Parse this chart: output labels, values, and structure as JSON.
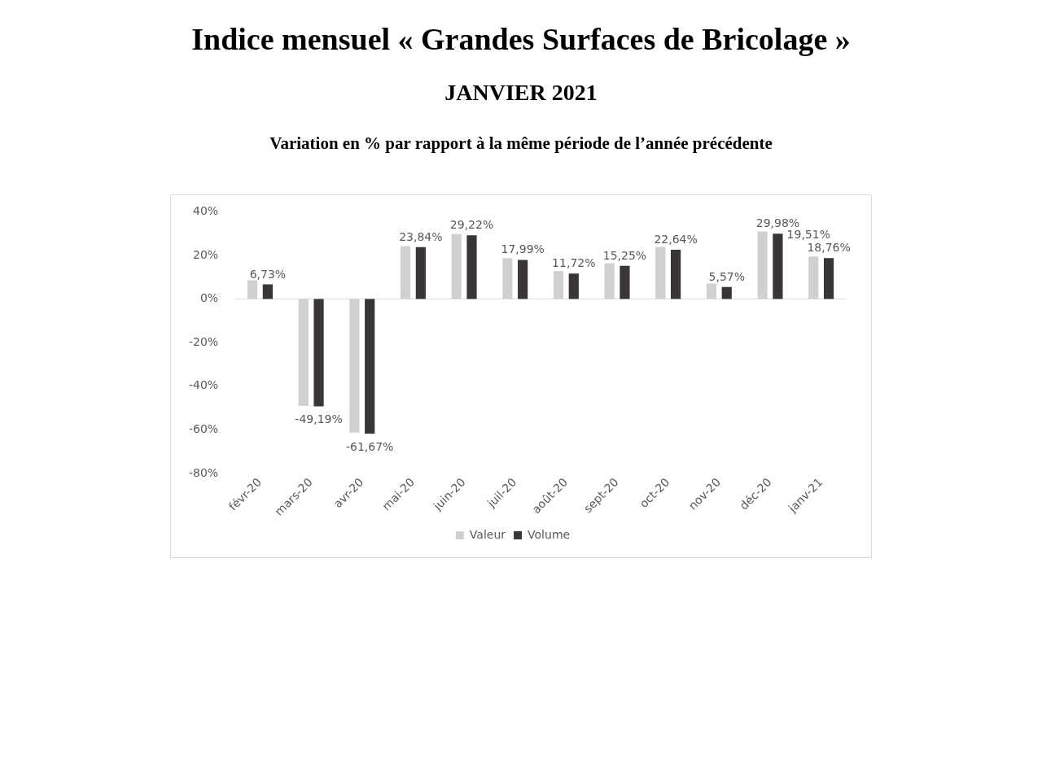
{
  "chart_data": {
    "type": "bar",
    "title": "Indice mensuel « Grandes Surfaces de Bricolage »",
    "subtitle": "JANVIER 2021",
    "annotations": [
      "Variation en % par rapport à la même période de l’année précédente"
    ],
    "categories": [
      "févr-20",
      "mars-20",
      "avr-20",
      "mai-20",
      "juin-20",
      "juil-20",
      "août-20",
      "sept-20",
      "oct-20",
      "nov-20",
      "déc-20",
      "janv-21"
    ],
    "series": [
      {
        "name": "Valeur",
        "color": "#d0d0d0",
        "values": [
          8.6,
          -49,
          -61.2,
          24.3,
          29.8,
          18.8,
          12.9,
          16.5,
          23.9,
          7.1,
          31,
          19.51
        ],
        "value_labels": [
          null,
          null,
          null,
          null,
          null,
          null,
          null,
          null,
          null,
          null,
          null,
          "19,51%"
        ]
      },
      {
        "name": "Volume",
        "color": "#3a3536",
        "values": [
          6.73,
          -49.19,
          -61.67,
          23.84,
          29.22,
          17.99,
          11.72,
          15.25,
          22.64,
          5.57,
          29.98,
          18.76
        ],
        "value_labels": [
          "6,73%",
          "-49,19%",
          "-61,67%",
          "23,84%",
          "29,22%",
          "17,99%",
          "11,72%",
          "15,25%",
          "22,64%",
          "5,57%",
          "29,98%",
          "18,76%"
        ]
      }
    ],
    "ylim": [
      -80,
      40
    ],
    "yticks": [
      {
        "value": -80,
        "label": "-80%"
      },
      {
        "value": -60,
        "label": "-60%"
      },
      {
        "value": -40,
        "label": "-40%"
      },
      {
        "value": -20,
        "label": "-20%"
      },
      {
        "value": 0,
        "label": "0%"
      },
      {
        "value": 20,
        "label": "20%"
      },
      {
        "value": 40,
        "label": "40%"
      }
    ],
    "ref_lines": [
      {
        "axis": "y",
        "value": 0,
        "color": "#d9d9d9"
      }
    ],
    "grid": false,
    "legend": "bottom"
  }
}
